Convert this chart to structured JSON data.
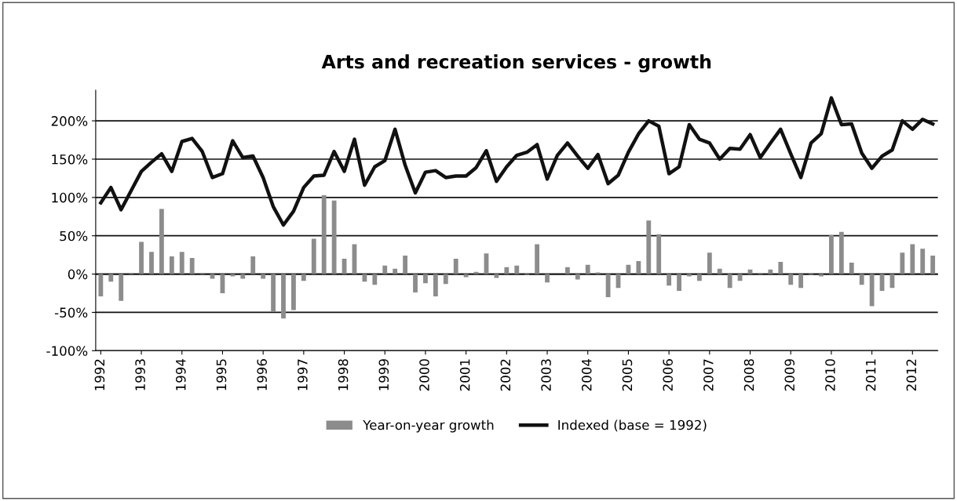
{
  "chart_data": {
    "type": "bar",
    "title": "Arts and recreation services - growth",
    "categories": [
      "1992",
      null,
      null,
      null,
      "1993",
      null,
      null,
      null,
      "1994",
      null,
      null,
      null,
      "1995",
      null,
      null,
      null,
      "1996",
      null,
      null,
      null,
      "1997",
      null,
      null,
      null,
      "1998",
      null,
      null,
      null,
      "1999",
      null,
      null,
      null,
      "2000",
      null,
      null,
      null,
      "2001",
      null,
      null,
      null,
      "2002",
      null,
      null,
      null,
      "2003",
      null,
      null,
      null,
      "2004",
      null,
      null,
      null,
      "2005",
      null,
      null,
      null,
      "2006",
      null,
      null,
      null,
      "2007",
      null,
      null,
      null,
      "2008",
      null,
      null,
      null,
      "2009",
      null,
      null,
      null,
      "2010",
      null,
      null,
      null,
      "2011",
      null,
      null,
      null,
      "2012",
      null,
      null
    ],
    "series": [
      {
        "name": "Year-on-year growth",
        "color": "#8c8c8c",
        "values": [
          -29,
          -10,
          -35,
          1,
          42,
          29,
          85,
          23,
          29,
          21,
          1,
          -6,
          -25,
          -3,
          -6,
          23,
          -6,
          -49,
          -58,
          -47,
          -9,
          46,
          103,
          96,
          20,
          39,
          -10,
          -14,
          11,
          7,
          24,
          -24,
          -12,
          -29,
          -13,
          20,
          -4,
          3,
          27,
          -5,
          9,
          11,
          -1,
          39,
          -11,
          0,
          9,
          -7,
          12,
          2,
          -30,
          -18,
          12,
          17,
          70,
          52,
          -15,
          -22,
          -3,
          -9,
          28,
          7,
          -18,
          -9,
          6,
          1,
          6,
          16,
          -14,
          -18,
          -1,
          -3,
          51,
          55,
          15,
          -14,
          -42,
          -22,
          -18,
          28,
          39,
          33,
          24
        ]
      },
      {
        "name": "Indexed (base = 1992)",
        "type": "line",
        "color": "#111111",
        "values": [
          93,
          113,
          84,
          109,
          134,
          146,
          157,
          134,
          173,
          177,
          160,
          126,
          131,
          174,
          152,
          154,
          126,
          88,
          64,
          82,
          113,
          128,
          129,
          160,
          134,
          176,
          116,
          140,
          148,
          189,
          142,
          106,
          133,
          135,
          126,
          128,
          128,
          139,
          161,
          121,
          140,
          155,
          159,
          169,
          124,
          155,
          171,
          154,
          138,
          156,
          118,
          129,
          159,
          183,
          200,
          193,
          131,
          140,
          195,
          176,
          171,
          150,
          164,
          163,
          182,
          152,
          171,
          189,
          157,
          126,
          171,
          183,
          230,
          195,
          196,
          158,
          138,
          154,
          162,
          200,
          189,
          202,
          196
        ]
      }
    ],
    "ylim": [
      -100,
      240
    ],
    "yticks": [
      {
        "value": -100,
        "label": "-100%"
      },
      {
        "value": -50,
        "label": "-50%"
      },
      {
        "value": 0,
        "label": "0%"
      },
      {
        "value": 50,
        "label": "50%"
      },
      {
        "value": 100,
        "label": "100%"
      },
      {
        "value": 150,
        "label": "150%"
      },
      {
        "value": 200,
        "label": "200%"
      }
    ],
    "grid": "y",
    "legend": "bottom",
    "marker": "none",
    "line_style": "solid"
  }
}
